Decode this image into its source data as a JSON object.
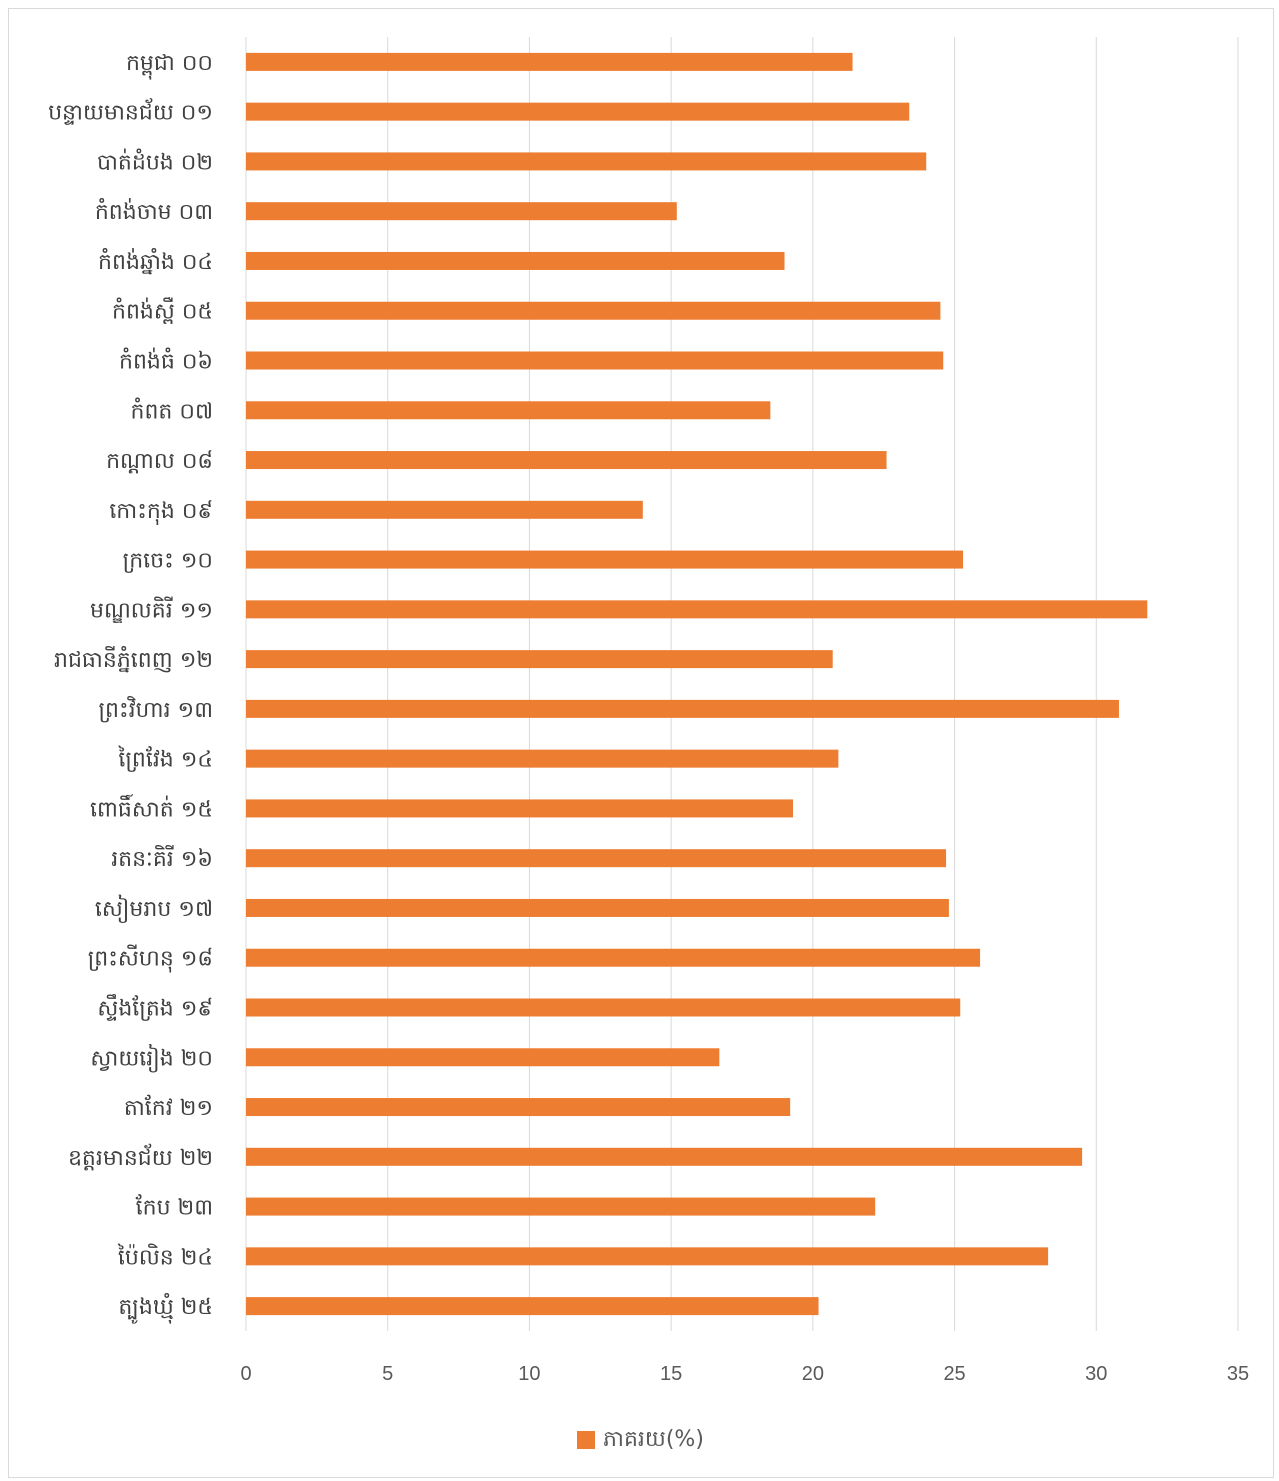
{
  "chart_data": {
    "type": "bar",
    "orientation": "horizontal",
    "categories": [
      "កម្ពុជា ០០",
      "បន្ទាយមានជ័យ ០១",
      "បាត់ដំបង ០២",
      "កំពង់ចាម ០៣",
      "កំពង់ឆ្នាំង ០៤",
      "កំពង់ស្ពឺ ០៥",
      "កំពង់ធំ ០៦",
      "កំពត ០៧",
      "កណ្តាល ០៨",
      "កោះកុង ០៩",
      "ក្រចេះ ១០",
      "មណ្ឌលគិរី ១១",
      "រាជធានីភ្នំពេញ ១២",
      "ព្រះវិហារ ១៣",
      "ព្រៃវែង ១៤",
      "ពោធិ៍សាត់ ១៥",
      "រតនៈគិរី ១៦",
      "សៀមរាប ១៧",
      "ព្រះសីហនុ ១៨",
      "ស្ទឹងត្រែង ១៩",
      "ស្វាយរៀង ២០",
      "តាកែវ ២១",
      "ឧត្តរមានជ័យ ២២",
      "កែប ២៣",
      "ប៉ៃលិន ២៤",
      "ត្បូងឃ្មុំ ២៥"
    ],
    "series": [
      {
        "name": "ភាគរយ(%)",
        "color": "#ED7D31",
        "values": [
          21.4,
          23.4,
          24.0,
          15.2,
          19.0,
          24.5,
          24.6,
          18.5,
          22.6,
          14.0,
          25.3,
          31.8,
          20.7,
          30.8,
          20.9,
          19.3,
          24.7,
          24.8,
          25.9,
          25.2,
          16.7,
          19.2,
          29.5,
          22.2,
          28.3,
          20.2
        ]
      }
    ],
    "xlim": [
      0,
      35
    ],
    "xticks": [
      "0",
      "5",
      "10",
      "15",
      "20",
      "25",
      "30",
      "35"
    ],
    "grid": true,
    "legend_position": "bottom"
  }
}
